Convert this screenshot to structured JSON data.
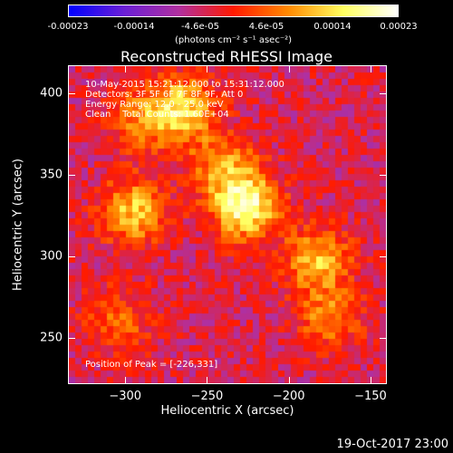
{
  "colorbar": {
    "ticks": [
      "-0.00023",
      "-0.00014",
      "-4.6e-05",
      "4.6e-05",
      "0.00014",
      "0.00023"
    ],
    "units": "(photons cm⁻² s⁻¹ asec⁻²)",
    "colors": [
      "#0000ff",
      "#6a1fd6",
      "#b030a0",
      "#ff1a00",
      "#ff8a00",
      "#ffff60",
      "#ffffff"
    ]
  },
  "chart_data": {
    "type": "heatmap",
    "title": "Reconstructed RHESSI Image",
    "xlabel": "Heliocentric X (arcsec)",
    "ylabel": "Heliocentric Y (arcsec)",
    "xlim": [
      -335,
      -140
    ],
    "ylim": [
      222,
      417
    ],
    "xticks": [
      -300,
      -250,
      -200,
      -150
    ],
    "yticks": [
      250,
      300,
      350,
      400
    ],
    "info": {
      "time": "10-May-2015 15:21:12.000 to 15:31:12.000",
      "detectors": "Detectors: 3F 5F 6F 7F 8F 9F, Att 0",
      "energy": "Energy Range: 12.0 - 25.0 keV",
      "clean": "Clean    Total Counts: 1.60E+04"
    },
    "peak": "Position of Peak = [-226,331]",
    "hotspots": [
      {
        "x": -226,
        "y": 331,
        "value": 0.00023
      },
      {
        "x": -265,
        "y": 390,
        "value": 0.00018
      },
      {
        "x": -295,
        "y": 328,
        "value": 0.00016
      },
      {
        "x": -182,
        "y": 298,
        "value": 0.00015
      },
      {
        "x": -240,
        "y": 355,
        "value": 0.00012
      },
      {
        "x": -175,
        "y": 262,
        "value": 0.00011
      },
      {
        "x": -305,
        "y": 260,
        "value": 9e-05
      },
      {
        "x": -290,
        "y": 385,
        "value": 0.0001
      }
    ]
  },
  "footer": "19-Oct-2017 23:00"
}
